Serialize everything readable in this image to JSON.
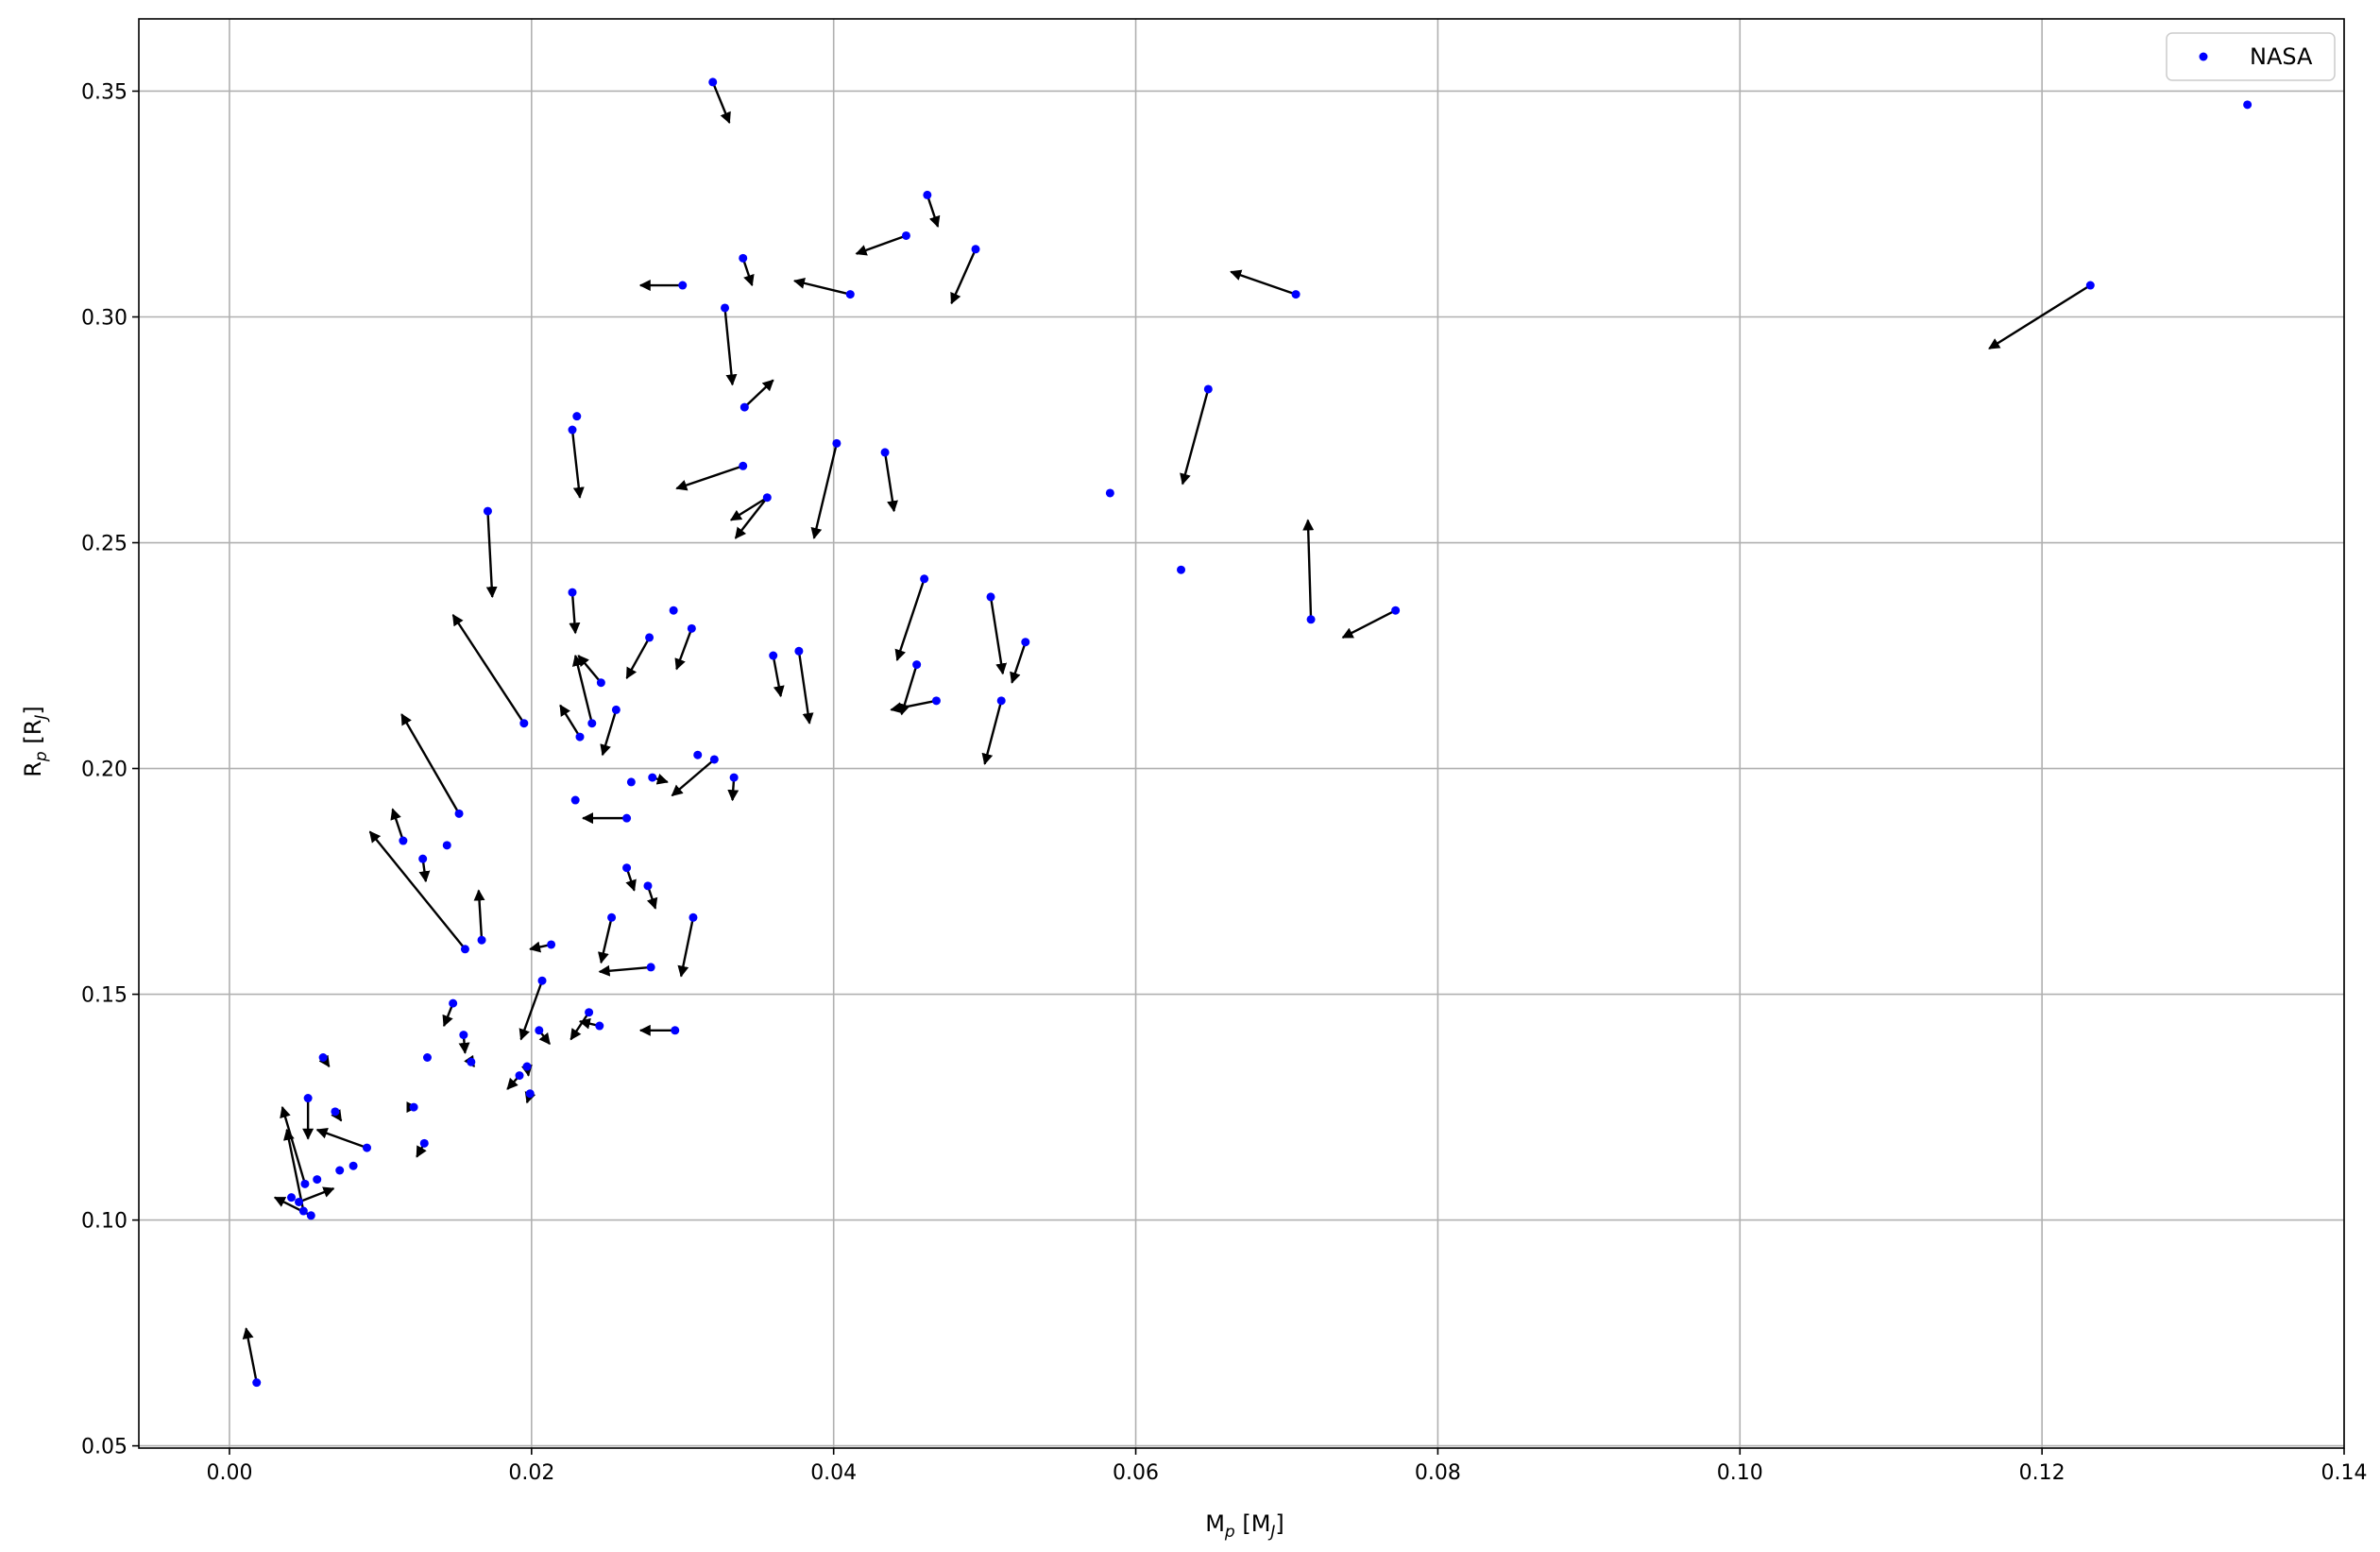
{
  "chart_data": {
    "type": "scatter",
    "xlabel": "M_p [M_J]",
    "ylabel": "R_p [R_J]",
    "xlim": [
      -0.006,
      0.14
    ],
    "ylim": [
      0.0495,
      0.366
    ],
    "x_ticks": [
      0.0,
      0.02,
      0.04,
      0.06,
      0.08,
      0.1,
      0.12,
      0.14
    ],
    "x_tick_labels": [
      "0.00",
      "0.02",
      "0.04",
      "0.06",
      "0.08",
      "0.10",
      "0.12",
      "0.14"
    ],
    "y_ticks": [
      0.05,
      0.1,
      0.15,
      0.2,
      0.25,
      0.3,
      0.35
    ],
    "y_tick_labels": [
      "0.05",
      "0.10",
      "0.15",
      "0.20",
      "0.25",
      "0.30",
      "0.35"
    ],
    "grid": true,
    "legend": {
      "position": "top-right",
      "entries": [
        "NASA"
      ]
    },
    "series": [
      {
        "name": "NASA",
        "color": "#0000ff",
        "points": [
          [
            0.032,
            0.352
          ],
          [
            0.0462,
            0.327
          ],
          [
            0.0448,
            0.318
          ],
          [
            0.0494,
            0.315
          ],
          [
            0.034,
            0.313
          ],
          [
            0.03,
            0.307
          ],
          [
            0.0411,
            0.305
          ],
          [
            0.0328,
            0.302
          ],
          [
            0.0706,
            0.305
          ],
          [
            0.1232,
            0.307
          ],
          [
            0.1336,
            0.347
          ],
          [
            0.0648,
            0.284
          ],
          [
            0.023,
            0.278
          ],
          [
            0.0341,
            0.28
          ],
          [
            0.0227,
            0.275
          ],
          [
            0.0434,
            0.27
          ],
          [
            0.0402,
            0.272
          ],
          [
            0.034,
            0.267
          ],
          [
            0.0356,
            0.26
          ],
          [
            0.0583,
            0.261
          ],
          [
            0.0171,
            0.257
          ],
          [
            0.063,
            0.244
          ],
          [
            0.046,
            0.242
          ],
          [
            0.0227,
            0.239
          ],
          [
            0.0504,
            0.238
          ],
          [
            0.0294,
            0.235
          ],
          [
            0.0772,
            0.235
          ],
          [
            0.0716,
            0.233
          ],
          [
            0.0306,
            0.231
          ],
          [
            0.0278,
            0.229
          ],
          [
            0.0527,
            0.228
          ],
          [
            0.036,
            0.225
          ],
          [
            0.0377,
            0.226
          ],
          [
            0.0455,
            0.223
          ],
          [
            0.0246,
            0.219
          ],
          [
            0.0468,
            0.215
          ],
          [
            0.0511,
            0.215
          ],
          [
            0.0256,
            0.213
          ],
          [
            0.0195,
            0.21
          ],
          [
            0.024,
            0.21
          ],
          [
            0.0232,
            0.207
          ],
          [
            0.031,
            0.203
          ],
          [
            0.0321,
            0.202
          ],
          [
            0.028,
            0.198
          ],
          [
            0.0334,
            0.198
          ],
          [
            0.0266,
            0.197
          ],
          [
            0.0229,
            0.193
          ],
          [
            0.0152,
            0.19
          ],
          [
            0.0263,
            0.189
          ],
          [
            0.0115,
            0.184
          ],
          [
            0.0144,
            0.183
          ],
          [
            0.0128,
            0.18
          ],
          [
            0.0263,
            0.178
          ],
          [
            0.0277,
            0.174
          ],
          [
            0.0253,
            0.167
          ],
          [
            0.0307,
            0.167
          ],
          [
            0.0167,
            0.162
          ],
          [
            0.0213,
            0.161
          ],
          [
            0.0156,
            0.16
          ],
          [
            0.0279,
            0.156
          ],
          [
            0.0207,
            0.153
          ],
          [
            0.0148,
            0.148
          ],
          [
            0.0238,
            0.146
          ],
          [
            0.0245,
            0.143
          ],
          [
            0.0295,
            0.142
          ],
          [
            0.0205,
            0.142
          ],
          [
            0.0155,
            0.141
          ],
          [
            0.016,
            0.135
          ],
          [
            0.0131,
            0.136
          ],
          [
            0.0062,
            0.136
          ],
          [
            0.0197,
            0.134
          ],
          [
            0.0192,
            0.132
          ],
          [
            0.0199,
            0.128
          ],
          [
            0.0052,
            0.127
          ],
          [
            0.0122,
            0.125
          ],
          [
            0.007,
            0.124
          ],
          [
            0.0129,
            0.117
          ],
          [
            0.0091,
            0.116
          ],
          [
            0.0082,
            0.112
          ],
          [
            0.0073,
            0.111
          ],
          [
            0.0058,
            0.109
          ],
          [
            0.005,
            0.108
          ],
          [
            0.0041,
            0.105
          ],
          [
            0.0046,
            0.104
          ],
          [
            0.0049,
            0.102
          ],
          [
            0.0054,
            0.101
          ],
          [
            0.0018,
            0.064
          ]
        ],
        "arrows": [
          [
            0.032,
            0.352,
            0.0331,
            0.343
          ],
          [
            0.0462,
            0.327,
            0.0469,
            0.32
          ],
          [
            0.0448,
            0.318,
            0.0415,
            0.314
          ],
          [
            0.0494,
            0.315,
            0.0478,
            0.303
          ],
          [
            0.034,
            0.313,
            0.0346,
            0.307
          ],
          [
            0.03,
            0.307,
            0.0272,
            0.307
          ],
          [
            0.0411,
            0.305,
            0.0374,
            0.308
          ],
          [
            0.0328,
            0.302,
            0.0333,
            0.285
          ],
          [
            0.0706,
            0.305,
            0.0663,
            0.31
          ],
          [
            0.1232,
            0.307,
            0.1165,
            0.293
          ],
          [
            0.0648,
            0.284,
            0.0631,
            0.263
          ],
          [
            0.0341,
            0.28,
            0.036,
            0.286
          ],
          [
            0.0227,
            0.275,
            0.0232,
            0.26
          ],
          [
            0.0434,
            0.27,
            0.044,
            0.257
          ],
          [
            0.0402,
            0.272,
            0.0387,
            0.251
          ],
          [
            0.034,
            0.267,
            0.0296,
            0.262
          ],
          [
            0.0356,
            0.26,
            0.0335,
            0.251
          ],
          [
            0.0356,
            0.26,
            0.0332,
            0.255
          ],
          [
            0.0171,
            0.257,
            0.0174,
            0.238
          ],
          [
            0.046,
            0.242,
            0.0442,
            0.224
          ],
          [
            0.0227,
            0.239,
            0.0229,
            0.23
          ],
          [
            0.0504,
            0.238,
            0.0512,
            0.221
          ],
          [
            0.0716,
            0.233,
            0.0714,
            0.255
          ],
          [
            0.0772,
            0.235,
            0.0737,
            0.229
          ],
          [
            0.0306,
            0.231,
            0.0296,
            0.222
          ],
          [
            0.0278,
            0.229,
            0.0263,
            0.22
          ],
          [
            0.0527,
            0.228,
            0.0518,
            0.219
          ],
          [
            0.036,
            0.225,
            0.0365,
            0.216
          ],
          [
            0.0377,
            0.226,
            0.0384,
            0.21
          ],
          [
            0.0455,
            0.223,
            0.0445,
            0.212
          ],
          [
            0.0468,
            0.215,
            0.0438,
            0.213
          ],
          [
            0.0511,
            0.215,
            0.05,
            0.201
          ],
          [
            0.0246,
            0.219,
            0.0231,
            0.225
          ],
          [
            0.0256,
            0.213,
            0.0247,
            0.203
          ],
          [
            0.0195,
            0.21,
            0.0148,
            0.234
          ],
          [
            0.024,
            0.21,
            0.0229,
            0.225
          ],
          [
            0.0232,
            0.207,
            0.0219,
            0.214
          ],
          [
            0.0321,
            0.202,
            0.0293,
            0.194
          ],
          [
            0.028,
            0.198,
            0.029,
            0.197
          ],
          [
            0.0334,
            0.198,
            0.0333,
            0.193
          ],
          [
            0.0152,
            0.19,
            0.0114,
            0.212
          ],
          [
            0.0263,
            0.189,
            0.0234,
            0.189
          ],
          [
            0.0115,
            0.184,
            0.0108,
            0.191
          ],
          [
            0.0156,
            0.16,
            0.0093,
            0.186
          ],
          [
            0.0128,
            0.18,
            0.013,
            0.175
          ],
          [
            0.0263,
            0.178,
            0.0268,
            0.173
          ],
          [
            0.0277,
            0.174,
            0.0282,
            0.169
          ],
          [
            0.0253,
            0.167,
            0.0246,
            0.157
          ],
          [
            0.0307,
            0.167,
            0.0299,
            0.154
          ],
          [
            0.0167,
            0.162,
            0.0165,
            0.173
          ],
          [
            0.0213,
            0.161,
            0.0199,
            0.16
          ],
          [
            0.0279,
            0.156,
            0.0245,
            0.155
          ],
          [
            0.0207,
            0.153,
            0.0193,
            0.14
          ],
          [
            0.0148,
            0.148,
            0.0142,
            0.143
          ],
          [
            0.0238,
            0.146,
            0.0226,
            0.14
          ],
          [
            0.0245,
            0.143,
            0.0232,
            0.144
          ],
          [
            0.0295,
            0.142,
            0.0272,
            0.142
          ],
          [
            0.0205,
            0.142,
            0.0212,
            0.139
          ],
          [
            0.0155,
            0.141,
            0.0156,
            0.137
          ],
          [
            0.016,
            0.135,
            0.0162,
            0.134
          ],
          [
            0.0062,
            0.136,
            0.0066,
            0.134
          ],
          [
            0.0197,
            0.134,
            0.0198,
            0.132
          ],
          [
            0.0192,
            0.132,
            0.0184,
            0.129
          ],
          [
            0.0199,
            0.128,
            0.0197,
            0.126
          ],
          [
            0.0052,
            0.127,
            0.0052,
            0.118
          ],
          [
            0.0122,
            0.125,
            0.0124,
            0.125
          ],
          [
            0.007,
            0.124,
            0.0074,
            0.122
          ],
          [
            0.0129,
            0.117,
            0.0124,
            0.114
          ],
          [
            0.0091,
            0.116,
            0.0058,
            0.12
          ],
          [
            0.005,
            0.108,
            0.0035,
            0.125
          ],
          [
            0.0049,
            0.102,
            0.0038,
            0.12
          ],
          [
            0.0054,
            0.101,
            0.003,
            0.105
          ],
          [
            0.0046,
            0.104,
            0.0069,
            0.107
          ],
          [
            0.0018,
            0.064,
            0.0011,
            0.076
          ]
        ]
      }
    ]
  }
}
